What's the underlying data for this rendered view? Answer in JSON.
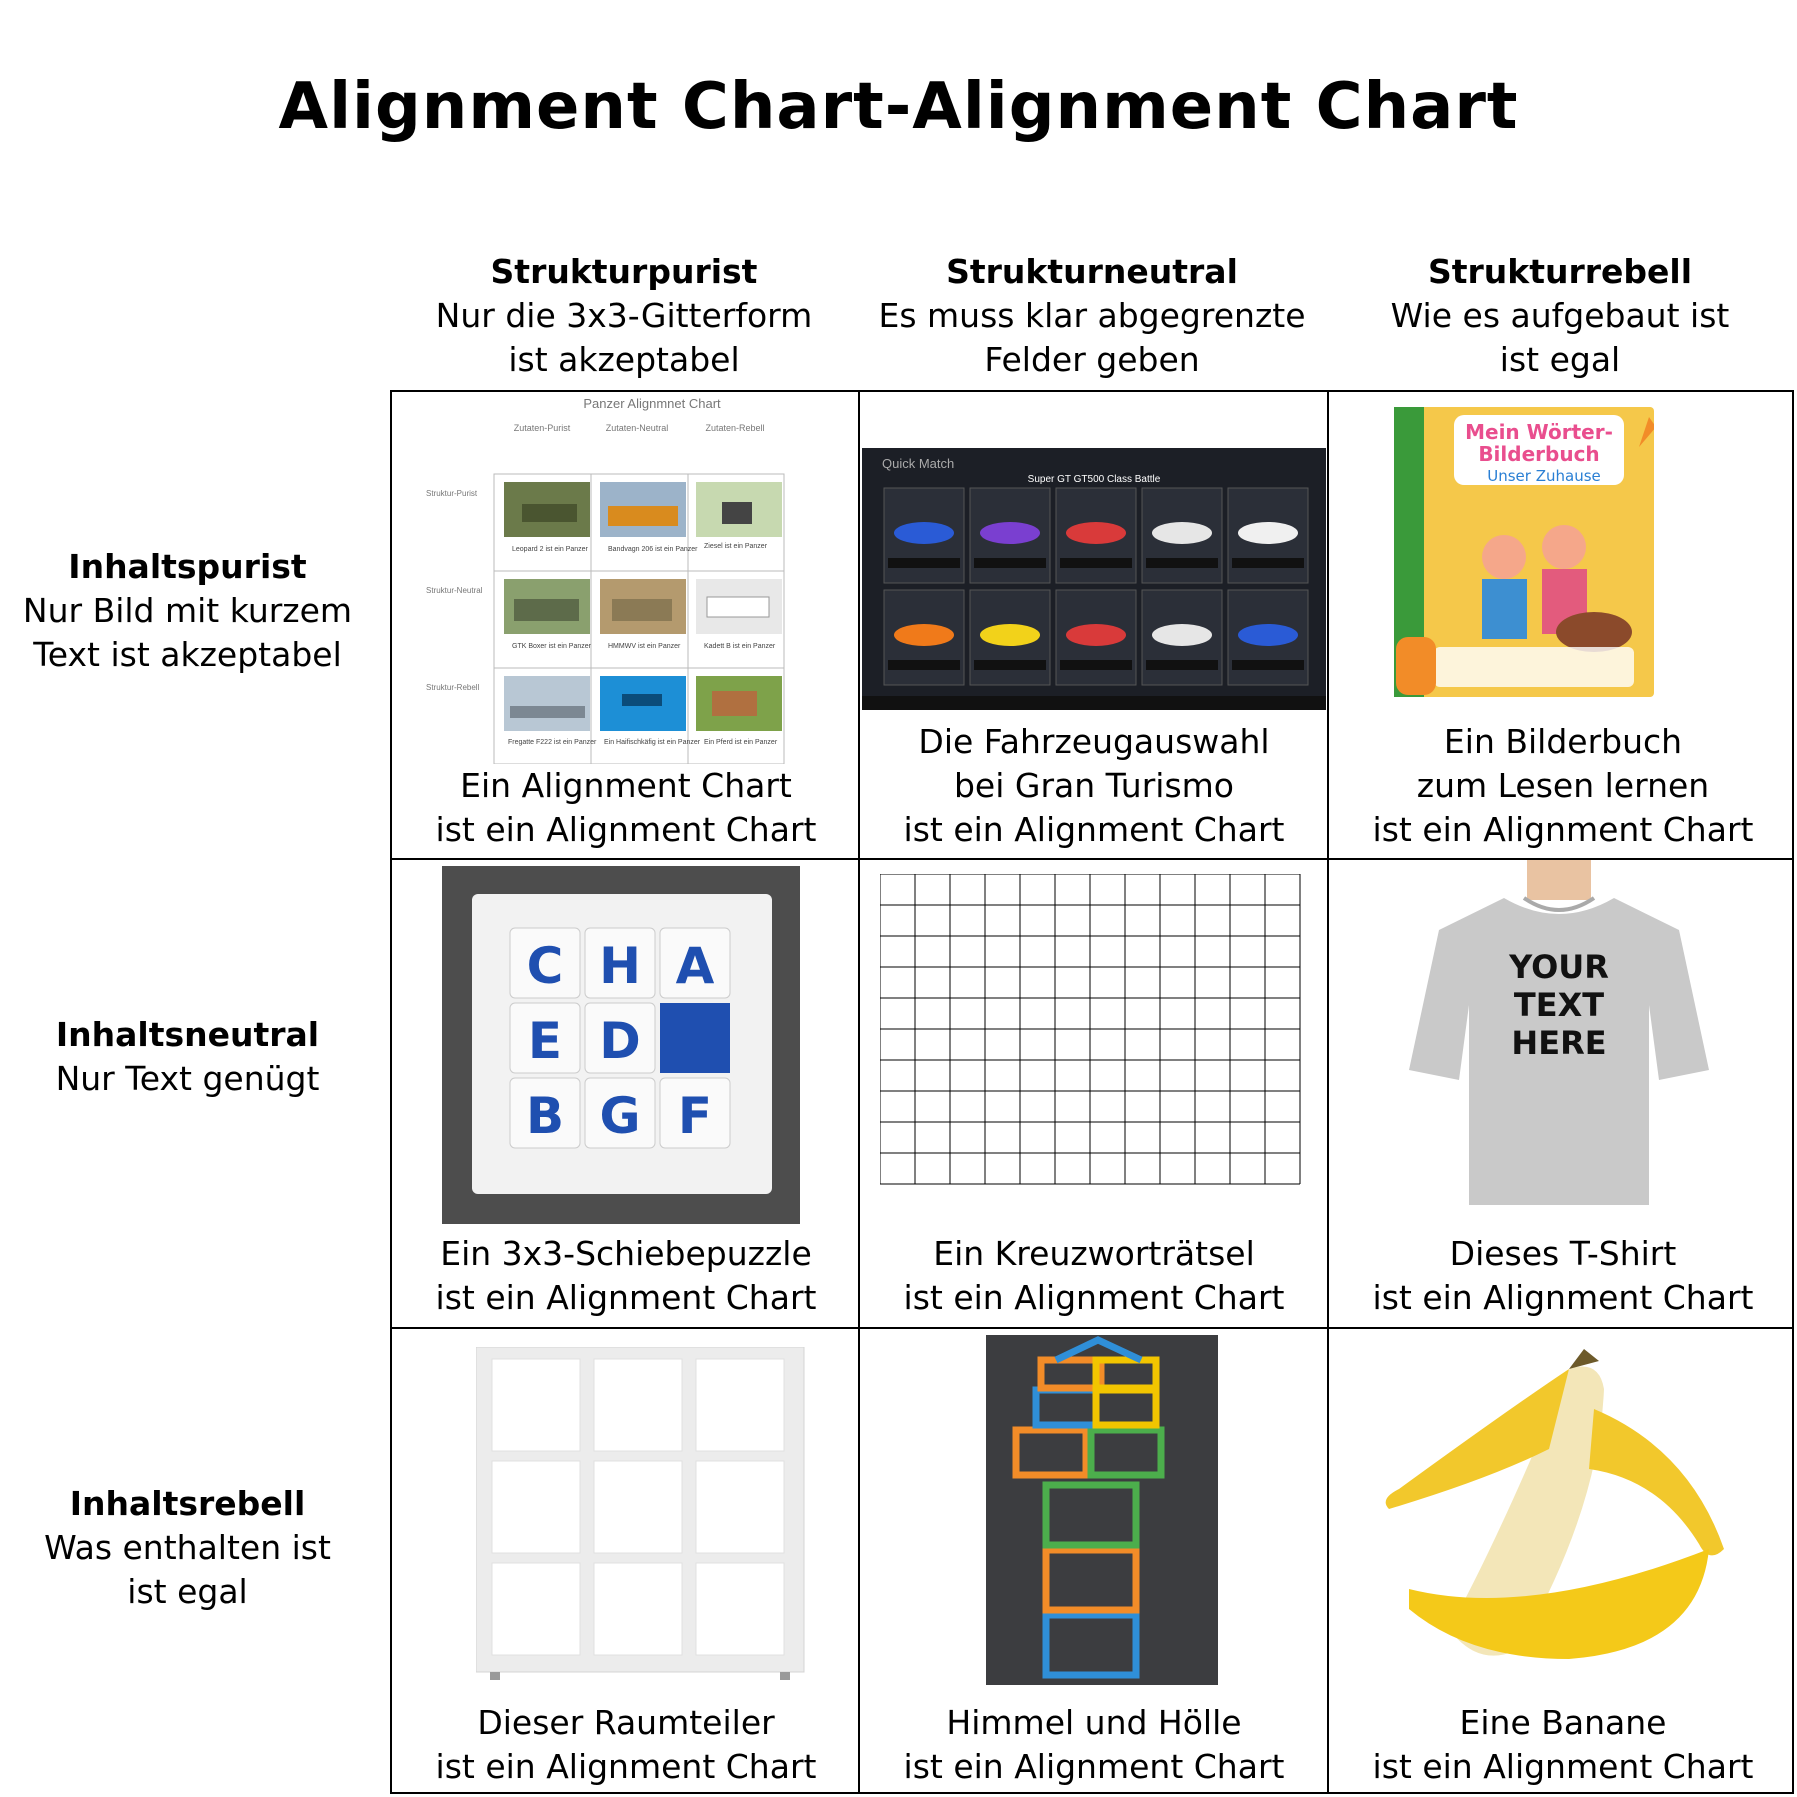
{
  "title": "Alignment Chart-Alignment Chart",
  "columns": [
    {
      "name": "Strukturpurist",
      "desc1": "Nur die 3x3-Gitterform",
      "desc2": "ist akzeptabel"
    },
    {
      "name": "Strukturneutral",
      "desc1": "Es muss klar abgegrenzte",
      "desc2": "Felder geben"
    },
    {
      "name": "Strukturrebell",
      "desc1": "Wie es aufgebaut ist",
      "desc2": "ist egal"
    }
  ],
  "rows": [
    {
      "name": "Inhaltspurist",
      "desc1": "Nur Bild mit kurzem",
      "desc2": "Text ist akzeptabel"
    },
    {
      "name": "Inhaltsneutral",
      "desc1": "Nur Text genügt",
      "desc2": ""
    },
    {
      "name": "Inhaltsrebell",
      "desc1": "Was enthalten ist",
      "desc2": "ist egal"
    }
  ],
  "cells": [
    {
      "line1": "",
      "line2": "Ein Alignment Chart",
      "line3": "ist ein Alignment Chart"
    },
    {
      "line1": "Die Fahrzeugauswahl",
      "line2": "bei Gran Turismo",
      "line3": "ist ein Alignment Chart"
    },
    {
      "line1": "Ein Bilderbuch",
      "line2": "zum Lesen lernen",
      "line3": "ist ein Alignment Chart"
    },
    {
      "line1": "",
      "line2": "Ein 3x3-Schiebepuzzle",
      "line3": "ist ein Alignment Chart"
    },
    {
      "line1": "",
      "line2": "Ein Kreuzworträtsel",
      "line3": "ist ein Alignment Chart"
    },
    {
      "line1": "",
      "line2": "Dieses T-Shirt",
      "line3": "ist ein Alignment Chart"
    },
    {
      "line1": "",
      "line2": "Dieser Raumteiler",
      "line3": "ist ein Alignment Chart"
    },
    {
      "line1": "",
      "line2": "Himmel und Hölle",
      "line3": "ist ein Alignment Chart"
    },
    {
      "line1": "",
      "line2": "Eine Banane",
      "line3": "ist ein Alignment Chart"
    }
  ],
  "panzer": {
    "title": "Panzer Alignmnet Chart",
    "cols": [
      "Zutaten-Purist",
      "Zutaten-Neutral",
      "Zutaten-Rebell"
    ],
    "rows": [
      "Struktur-Purist",
      "Struktur-Neutral",
      "Struktur-Rebell"
    ],
    "captions": [
      "Leopard 2 ist ein Panzer",
      "Bandvagn 206 ist ein Panzer",
      "Ziesel ist ein Panzer",
      "GTK Boxer ist ein Panzer",
      "HMMWV ist ein Panzer",
      "Kadett B ist ein Panzer",
      "Fregatte F222 ist ein Panzer",
      "Ein Haifischkäfig ist ein Panzer",
      "Ein Pferd ist ein Panzer"
    ]
  },
  "gt": {
    "header": "Quick Match",
    "subtitle": "Super GT GT500 Class Battle"
  },
  "tiptoi": {
    "title1": "Mein Wörter-",
    "title2": "Bilderbuch",
    "title3": "Unser Zuhause"
  },
  "puzzle": {
    "letters": [
      "C",
      "H",
      "A",
      "E",
      "D",
      "",
      "B",
      "G",
      "F"
    ]
  },
  "tshirt": {
    "l1": "YOUR",
    "l2": "TEXT",
    "l3": "HERE"
  },
  "colors": {
    "puzzleBlue": "#1f4fb0",
    "hop": [
      "#2f8fd8",
      "#f28c28",
      "#4cae4c",
      "#f2c500"
    ]
  }
}
